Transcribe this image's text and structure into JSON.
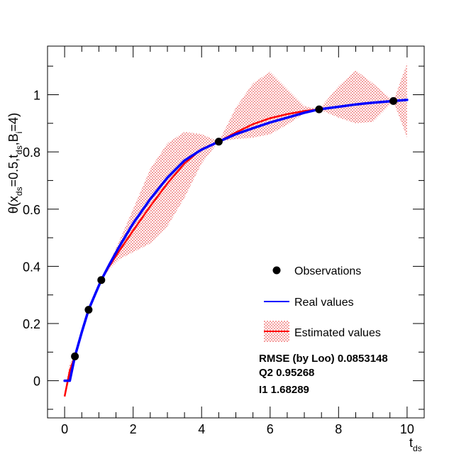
{
  "chart_data": {
    "type": "line",
    "xlabel": {
      "main": "t",
      "sub": "ds"
    },
    "ylabel": {
      "parts": [
        {
          "text": "θ(x",
          "sub": false
        },
        {
          "text": "ds",
          "sub": true
        },
        {
          "text": "=0.5,t",
          "sub": false
        },
        {
          "text": "ds",
          "sub": true
        },
        {
          "text": ",B",
          "sub": false
        },
        {
          "text": "i",
          "sub": true
        },
        {
          "text": "=4)",
          "sub": false
        }
      ]
    },
    "xlim": [
      -0.5,
      10.5
    ],
    "ylim": [
      -0.13,
      1.17
    ],
    "x_ticks": [
      0,
      2,
      4,
      6,
      8,
      10
    ],
    "x_tick_labels": [
      "0",
      "2",
      "4",
      "6",
      "8",
      "10"
    ],
    "y_ticks": [
      0,
      0.2,
      0.4,
      0.6,
      0.8,
      1
    ],
    "y_tick_labels": [
      "0",
      "0.2",
      "0.4",
      "0.6",
      "0.8",
      "1"
    ],
    "observations": {
      "name": "Observations",
      "x": [
        0.3,
        0.7,
        1.07,
        4.5,
        7.43,
        9.6
      ],
      "y": [
        0.085,
        0.248,
        0.352,
        0.836,
        0.949,
        0.978
      ]
    },
    "real_values": {
      "name": "Real values",
      "color": "#0000ff",
      "x": [
        0,
        0.15,
        0.3,
        0.5,
        0.7,
        0.9,
        1.07,
        1.3,
        1.6,
        2.0,
        2.5,
        3.0,
        3.5,
        4.0,
        4.5,
        5.0,
        5.5,
        6.0,
        6.5,
        7.0,
        7.43,
        8.0,
        8.5,
        9.0,
        9.6,
        10.0
      ],
      "y": [
        0.0,
        0.0,
        0.085,
        0.17,
        0.248,
        0.305,
        0.352,
        0.405,
        0.47,
        0.55,
        0.635,
        0.71,
        0.77,
        0.808,
        0.836,
        0.862,
        0.883,
        0.903,
        0.92,
        0.937,
        0.949,
        0.958,
        0.966,
        0.972,
        0.978,
        0.982
      ]
    },
    "estimated_values": {
      "name": "Estimated values",
      "color": "#ff0000",
      "x": [
        0,
        0.15,
        0.3,
        0.5,
        0.7,
        0.9,
        1.07,
        1.3,
        1.6,
        2.0,
        2.5,
        3.0,
        3.5,
        4.0,
        4.5,
        5.0,
        5.5,
        6.0,
        6.5,
        7.0,
        7.43,
        8.0,
        8.5,
        9.0,
        9.6,
        10.0
      ],
      "y": [
        -0.055,
        0.035,
        0.085,
        0.17,
        0.248,
        0.305,
        0.352,
        0.4,
        0.455,
        0.525,
        0.61,
        0.69,
        0.76,
        0.81,
        0.836,
        0.868,
        0.897,
        0.918,
        0.932,
        0.943,
        0.949,
        0.958,
        0.966,
        0.972,
        0.978,
        0.982
      ],
      "lower": [
        -0.06,
        0.01,
        0.085,
        0.165,
        0.245,
        0.305,
        0.352,
        0.39,
        0.425,
        0.45,
        0.48,
        0.54,
        0.64,
        0.76,
        0.836,
        0.845,
        0.85,
        0.862,
        0.895,
        0.935,
        0.949,
        0.92,
        0.9,
        0.905,
        0.978,
        0.85
      ],
      "upper": [
        -0.04,
        0.06,
        0.085,
        0.175,
        0.25,
        0.305,
        0.352,
        0.41,
        0.49,
        0.6,
        0.74,
        0.83,
        0.87,
        0.862,
        0.836,
        0.955,
        1.04,
        1.08,
        1.02,
        0.96,
        0.949,
        1.03,
        1.085,
        1.04,
        0.978,
        1.11
      ]
    },
    "annotations": [
      "RMSE (by Loo) 0.0853148",
      "Q2 0.95268",
      "I1 1.68289"
    ]
  }
}
